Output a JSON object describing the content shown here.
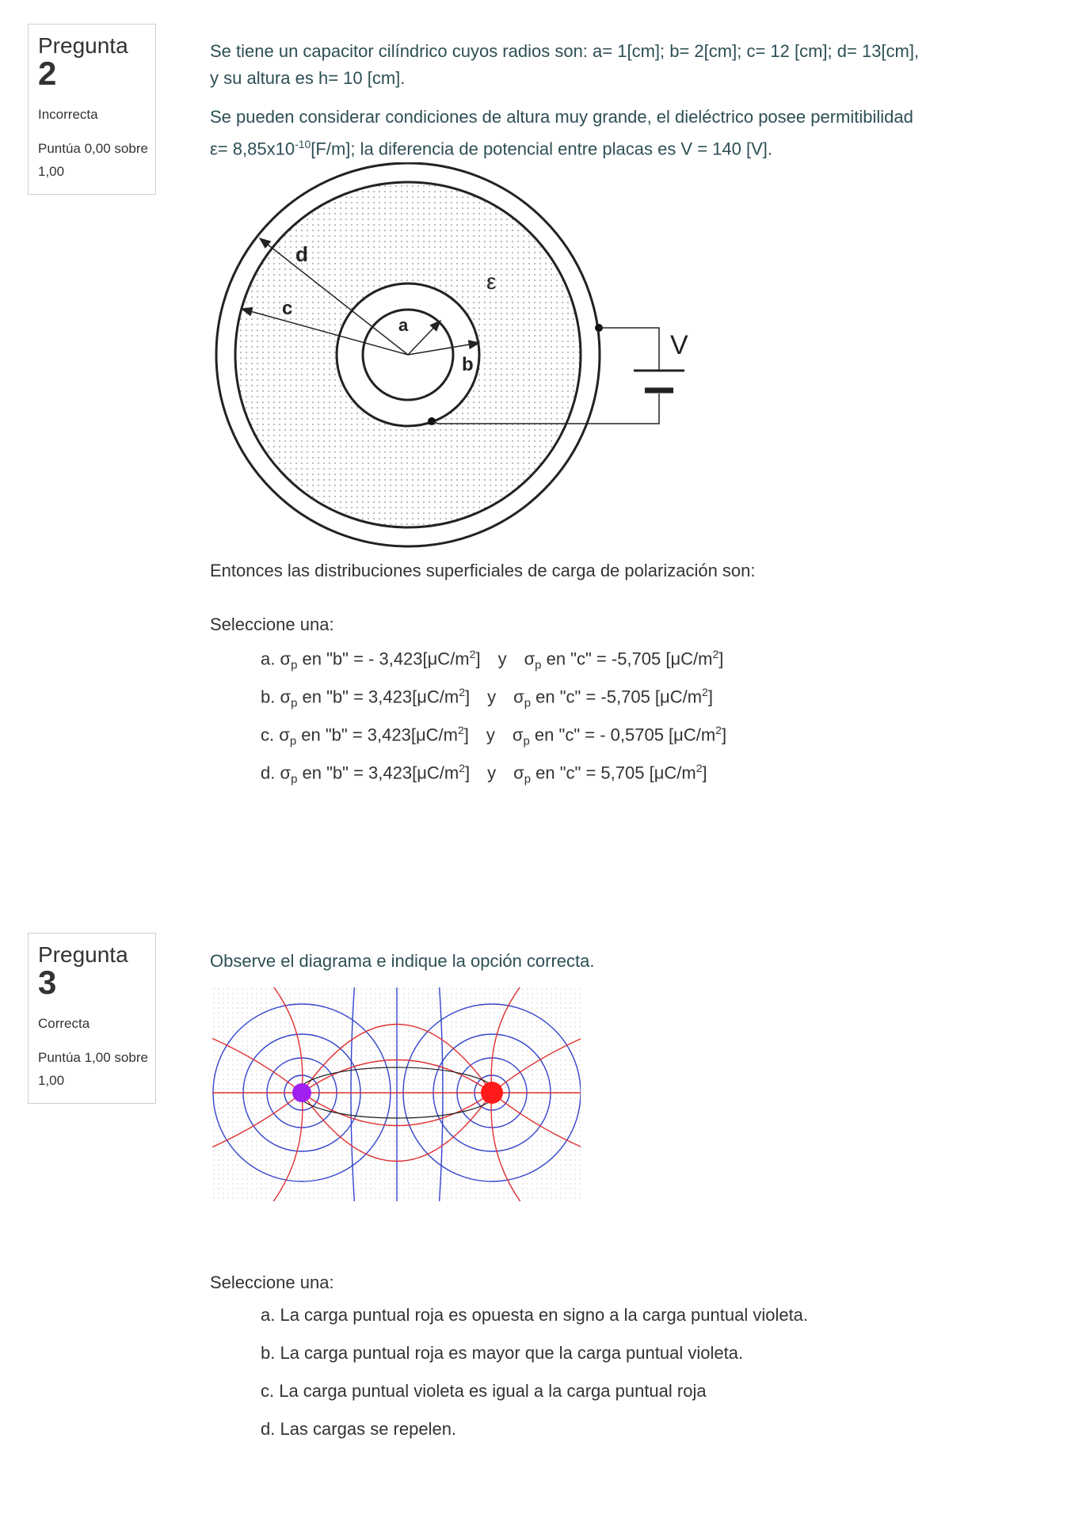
{
  "q2": {
    "info": {
      "label": "Pregunta",
      "number": "2",
      "state": "Incorrecta",
      "grade": "Puntúa 0,00 sobre 1,00"
    },
    "text_p1_line1": "Se tiene un capacitor cilíndrico cuyos radios son:  a= 1[cm]; b= 2[cm]; c= 12 [cm]; d= 13[cm],",
    "text_p1_line2": "y su altura es h= 10 [cm].",
    "text_p2_line1": "Se pueden considerar condiciones de altura muy grande, el dieléctrico posee permitibilidad",
    "text_p2_line2_pre": "ε= 8,85x10",
    "text_p2_line2_exp": "-10",
    "text_p2_line2_post": "[F/m]; la diferencia de potencial entre placas es V = 140 [V].",
    "diagram": {
      "label_d": "d",
      "label_c": "c",
      "label_a": "a",
      "label_b": "b",
      "label_eps": "ε",
      "label_v": "V"
    },
    "follow_text": "Entonces las distribuciones superficiales de carga de polarización son:",
    "select_label": "Seleccione una:",
    "options": [
      {
        "letter": "a.",
        "sigma": "σ",
        "sub": "p",
        "b_pre": " en \"b\" = - 3,423[μC/m",
        "sq": "2",
        "close": "]",
        "y": "y",
        "c_pre": " en \"c\" = -5,705 [μC/m"
      },
      {
        "letter": "b.",
        "sigma": "σ",
        "sub": "p",
        "b_pre": " en \"b\" =  3,423[μC/m",
        "sq": "2",
        "close": "]",
        "y": "y",
        "c_pre": " en \"c\" = -5,705 [μC/m"
      },
      {
        "letter": "c.",
        "sigma": "σ",
        "sub": "p",
        "b_pre": " en \"b\" =  3,423[μC/m",
        "sq": "2",
        "close": "]",
        "y": "y",
        "c_pre": " en \"c\" = - 0,5705 [μC/m"
      },
      {
        "letter": "d.",
        "sigma": "σ",
        "sub": "p",
        "b_pre": " en \"b\" =  3,423[μC/m",
        "sq": "2",
        "close": "]",
        "y": "y",
        "c_pre": " en \"c\" = 5,705 [μC/m"
      }
    ]
  },
  "q3": {
    "info": {
      "label": "Pregunta",
      "number": "3",
      "state": "Correcta",
      "grade": "Puntúa 1,00 sobre 1,00"
    },
    "text": "Observe el diagrama e indique la opción correcta.",
    "select_label": "Seleccione una:",
    "options": [
      "a. La carga puntual roja es opuesta en signo a la carga puntual violeta.",
      "b. La carga puntual roja es mayor que la carga puntual violeta.",
      "c. La carga puntual violeta  es igual a la carga puntual roja",
      "d. Las cargas se repelen."
    ]
  },
  "colors": {
    "question_text": "#2d4f55",
    "red_charge": "#ff1a1a",
    "violet_charge": "#a020f0",
    "field_red": "#e03030",
    "field_blue": "#3344cc"
  }
}
